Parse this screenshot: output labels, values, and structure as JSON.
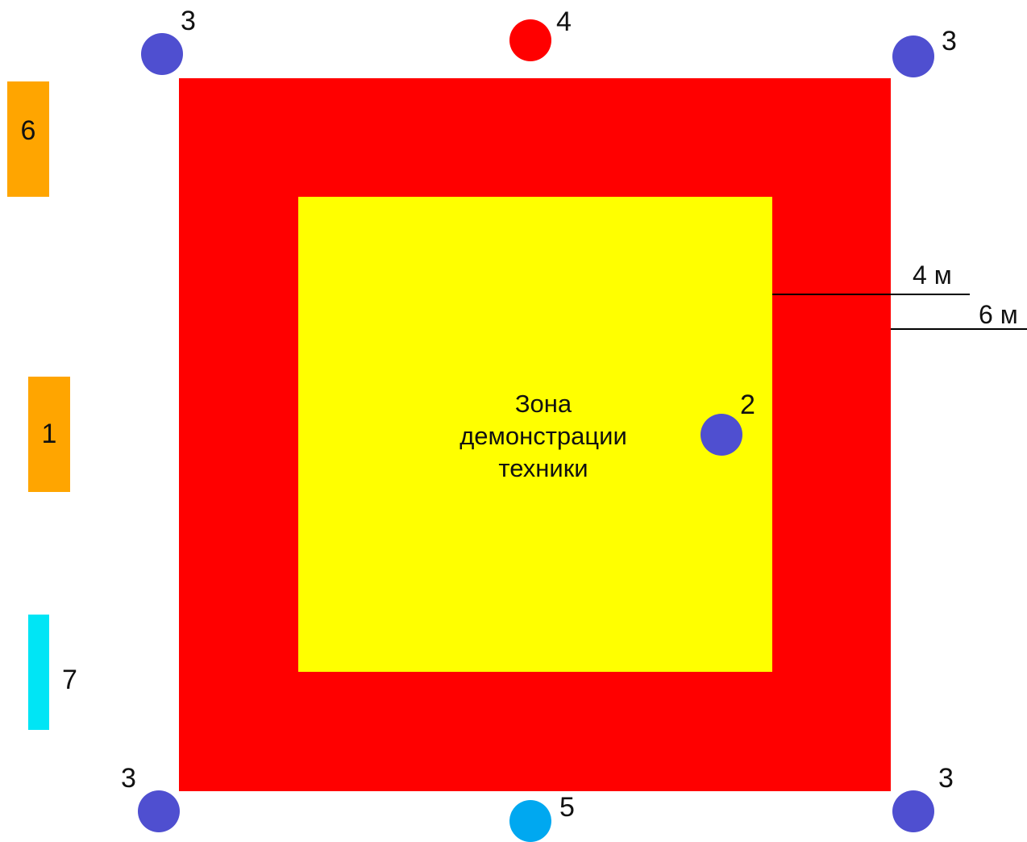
{
  "colors": {
    "outer_zone": "#FF0000",
    "inner_zone": "#FFFF00",
    "marker_blue": "#4F4FD0",
    "marker_red": "#FF0000",
    "marker_lightblue": "#00A8F0",
    "block_orange": "#FFA500",
    "block_cyan": "#00E5F5",
    "line": "#000000"
  },
  "inner_zone": {
    "label_lines": [
      "Зона",
      "демонстрации",
      "техники"
    ]
  },
  "markers": {
    "corner_label": "3",
    "center_label": "2",
    "top_label": "4",
    "bottom_label": "5"
  },
  "blocks": {
    "top_left_label": "6",
    "middle_left_label": "1",
    "bottom_left_label": "7"
  },
  "dimensions": {
    "inner_offset": "4 м",
    "outer_offset": "6 м"
  }
}
